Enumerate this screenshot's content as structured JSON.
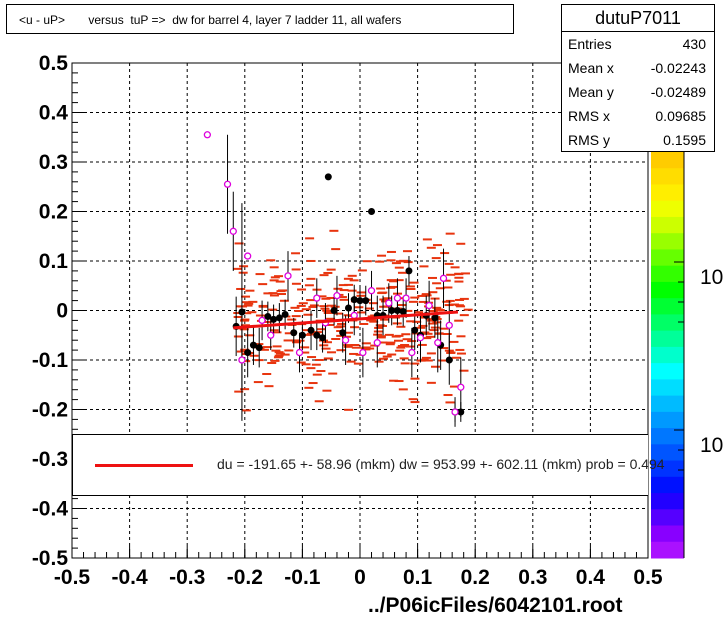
{
  "title": "<u - uP>       versus  tuP =>  dw for barrel 4, layer 7 ladder 11, all wafers",
  "stats": {
    "name": "dutuP7011",
    "rows": [
      {
        "label": "Entries",
        "value": "430"
      },
      {
        "label": "Mean x",
        "value": "-0.02243"
      },
      {
        "label": "Mean y",
        "value": "-0.02489"
      },
      {
        "label": "RMS x",
        "value": "0.09685"
      },
      {
        "label": "RMS y",
        "value": "0.1595"
      }
    ]
  },
  "fit_text": "du = -191.65 +- 58.96 (mkm) dw =  953.99 +- 602.11 (mkm) prob = 0.494",
  "footer": "../P06icFiles/6042101.root",
  "palette_labels": [
    "10",
    "10"
  ],
  "colors": {
    "hist": "#e8340e",
    "profile": "#000000",
    "marker_open": "#dd00dd",
    "fit": "#ee1111"
  },
  "chart_data": {
    "type": "scatter",
    "xlim": [
      -0.5,
      0.5
    ],
    "ylim": [
      -0.5,
      0.5
    ],
    "x_ticks": [
      -0.5,
      -0.4,
      -0.3,
      -0.2,
      -0.1,
      0,
      0.1,
      0.2,
      0.3,
      0.4,
      0.5
    ],
    "y_ticks": [
      0.5,
      0.4,
      0.3,
      0.2,
      0.1,
      0,
      -0.1,
      -0.2,
      -0.3,
      -0.4,
      -0.5
    ],
    "x_tick_labels": [
      "-0.5",
      "-0.4",
      "-0.3",
      "-0.2",
      "-0.1",
      "0",
      "0.1",
      "0.2",
      "0.3",
      "0.4",
      "0.5"
    ],
    "y_tick_labels": [
      "0.5",
      "0.4",
      "0.3",
      "0.2",
      "0.1",
      "0",
      "-0.1",
      "-0.2",
      "-0.3",
      "-0.4",
      "-0.5"
    ],
    "grid": true,
    "fit_line": {
      "x": [
        -0.22,
        0.17
      ],
      "y": [
        -0.035,
        -0.003
      ]
    },
    "profile_black": [
      {
        "x": -0.215,
        "y": -0.032,
        "err": 0.06
      },
      {
        "x": -0.205,
        "y": -0.003,
        "err": 0.22
      },
      {
        "x": -0.195,
        "y": -0.085,
        "err": 0.05
      },
      {
        "x": -0.185,
        "y": -0.07,
        "err": 0.04
      },
      {
        "x": -0.175,
        "y": -0.075,
        "err": 0.04
      },
      {
        "x": -0.16,
        "y": -0.012,
        "err": 0.03
      },
      {
        "x": -0.15,
        "y": -0.018,
        "err": 0.03
      },
      {
        "x": -0.14,
        "y": -0.015,
        "err": 0.03
      },
      {
        "x": -0.13,
        "y": -0.008,
        "err": 0.03
      },
      {
        "x": -0.115,
        "y": -0.045,
        "err": 0.03
      },
      {
        "x": -0.1,
        "y": -0.05,
        "err": 0.03
      },
      {
        "x": -0.085,
        "y": -0.04,
        "err": 0.04
      },
      {
        "x": -0.075,
        "y": -0.05,
        "err": 0.03
      },
      {
        "x": -0.065,
        "y": -0.055,
        "err": 0.03
      },
      {
        "x": -0.055,
        "y": 0.27,
        "err": 0.0
      },
      {
        "x": -0.045,
        "y": 0.0,
        "err": 0.03
      },
      {
        "x": -0.03,
        "y": -0.045,
        "err": 0.04
      },
      {
        "x": -0.02,
        "y": 0.005,
        "err": 0.03
      },
      {
        "x": -0.01,
        "y": 0.022,
        "err": 0.03
      },
      {
        "x": 0.0,
        "y": 0.02,
        "err": 0.03
      },
      {
        "x": 0.01,
        "y": 0.02,
        "err": 0.03
      },
      {
        "x": 0.02,
        "y": 0.2,
        "err": 0.0
      },
      {
        "x": 0.03,
        "y": -0.01,
        "err": 0.04
      },
      {
        "x": 0.04,
        "y": -0.01,
        "err": 0.04
      },
      {
        "x": 0.055,
        "y": 0.0,
        "err": 0.03
      },
      {
        "x": 0.065,
        "y": 0.0,
        "err": 0.03
      },
      {
        "x": 0.075,
        "y": -0.002,
        "err": 0.03
      },
      {
        "x": 0.085,
        "y": 0.08,
        "err": 0.03
      },
      {
        "x": 0.095,
        "y": -0.04,
        "err": 0.04
      },
      {
        "x": 0.105,
        "y": -0.05,
        "err": 0.04
      },
      {
        "x": 0.115,
        "y": -0.01,
        "err": 0.04
      },
      {
        "x": 0.13,
        "y": -0.015,
        "err": 0.04
      },
      {
        "x": 0.14,
        "y": -0.07,
        "err": 0.05
      },
      {
        "x": 0.155,
        "y": -0.1,
        "err": 0.05
      },
      {
        "x": 0.165,
        "y": -0.205,
        "err": 0.02
      },
      {
        "x": 0.175,
        "y": -0.205,
        "err": 0.02
      }
    ],
    "profile_open": [
      {
        "x": -0.265,
        "y": 0.355,
        "err": 0.0
      },
      {
        "x": -0.23,
        "y": 0.255,
        "err": 0.1
      },
      {
        "x": -0.22,
        "y": 0.16,
        "err": 0.08
      },
      {
        "x": -0.195,
        "y": 0.11,
        "err": 0.0
      },
      {
        "x": -0.205,
        "y": -0.1,
        "err": 0.06
      },
      {
        "x": -0.17,
        "y": -0.02,
        "err": 0.04
      },
      {
        "x": -0.155,
        "y": -0.05,
        "err": 0.03
      },
      {
        "x": -0.125,
        "y": 0.07,
        "err": 0.05
      },
      {
        "x": -0.105,
        "y": -0.085,
        "err": 0.04
      },
      {
        "x": -0.075,
        "y": 0.025,
        "err": 0.04
      },
      {
        "x": -0.06,
        "y": -0.025,
        "err": 0.04
      },
      {
        "x": -0.04,
        "y": 0.03,
        "err": 0.04
      },
      {
        "x": -0.025,
        "y": -0.06,
        "err": 0.05
      },
      {
        "x": -0.01,
        "y": -0.01,
        "err": 0.04
      },
      {
        "x": 0.005,
        "y": -0.085,
        "err": 0.05
      },
      {
        "x": 0.02,
        "y": 0.04,
        "err": 0.04
      },
      {
        "x": 0.03,
        "y": -0.065,
        "err": 0.05
      },
      {
        "x": 0.05,
        "y": 0.015,
        "err": 0.04
      },
      {
        "x": 0.065,
        "y": 0.025,
        "err": 0.04
      },
      {
        "x": 0.08,
        "y": 0.025,
        "err": 0.04
      },
      {
        "x": 0.09,
        "y": -0.085,
        "err": 0.05
      },
      {
        "x": 0.105,
        "y": -0.055,
        "err": 0.05
      },
      {
        "x": 0.12,
        "y": 0.01,
        "err": 0.05
      },
      {
        "x": 0.135,
        "y": -0.065,
        "err": 0.06
      },
      {
        "x": 0.145,
        "y": 0.065,
        "err": 0.06
      },
      {
        "x": 0.155,
        "y": -0.03,
        "err": 0.05
      },
      {
        "x": 0.165,
        "y": -0.205,
        "err": 0.03
      },
      {
        "x": 0.175,
        "y": -0.155,
        "err": 0.06
      }
    ]
  }
}
